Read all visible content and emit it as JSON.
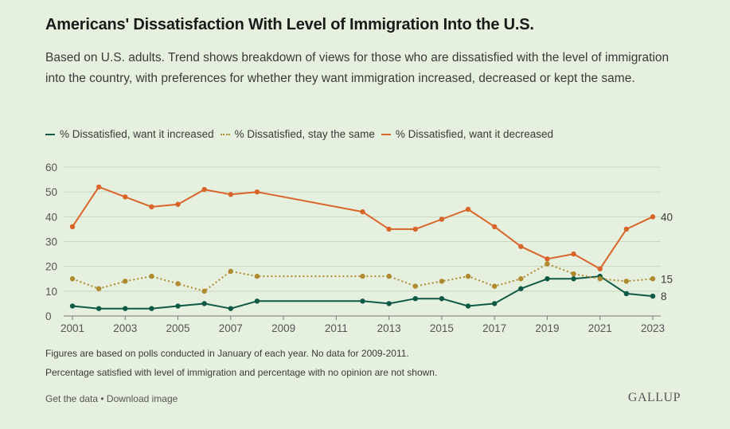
{
  "title": "Americans' Dissatisfaction With Level of Immigration Into the U.S.",
  "subtitle": "Based on U.S. adults. Trend shows breakdown of views for those who are dissatisfied with the level of immigration into the country, with preferences for whether they want immigration increased, decreased or kept the same.",
  "notes": [
    "Figures are based on polls conducted in January of each year. No data for 2009-2011.",
    "Percentage satisfied with level of immigration and percentage with no opinion are not shown."
  ],
  "footer": {
    "get_data": "Get the data",
    "separator": " • ",
    "download": "Download image"
  },
  "brand": "GALLUP",
  "colors": {
    "increased": "#0f5a46",
    "same": "#b08a2e",
    "decreased": "#d9652b",
    "grid": "#c9d6c0",
    "axis": "#7a7a7a"
  },
  "chart_data": {
    "type": "line",
    "xlabel": "",
    "ylabel": "",
    "ylim": [
      0,
      60
    ],
    "yticks": [
      0,
      10,
      20,
      30,
      40,
      50,
      60
    ],
    "xlim": [
      2001,
      2023
    ],
    "xticks": [
      2001,
      2003,
      2005,
      2007,
      2009,
      2011,
      2013,
      2015,
      2017,
      2019,
      2021,
      2023
    ],
    "grid": "horizontal",
    "legend_position": "top-left",
    "x": [
      2001,
      2002,
      2003,
      2004,
      2005,
      2006,
      2007,
      2008,
      2012,
      2013,
      2014,
      2015,
      2016,
      2017,
      2018,
      2019,
      2020,
      2021,
      2022,
      2023
    ],
    "series": [
      {
        "key": "increased",
        "name": "% Dissatisfied, want it increased",
        "style": "solid",
        "values": [
          4,
          3,
          3,
          3,
          4,
          5,
          3,
          6,
          6,
          5,
          7,
          7,
          4,
          5,
          11,
          15,
          15,
          16,
          9,
          8
        ],
        "end_label": "8"
      },
      {
        "key": "same",
        "name": "% Dissatisfied, stay the same",
        "style": "dotted",
        "values": [
          15,
          11,
          14,
          16,
          13,
          10,
          18,
          16,
          16,
          16,
          12,
          14,
          16,
          12,
          15,
          21,
          17,
          15,
          14,
          15
        ],
        "end_label": "15"
      },
      {
        "key": "decreased",
        "name": "% Dissatisfied, want it decreased",
        "style": "solid",
        "values": [
          36,
          52,
          48,
          44,
          45,
          51,
          49,
          50,
          42,
          35,
          35,
          39,
          43,
          36,
          28,
          23,
          25,
          19,
          35,
          40
        ],
        "end_label": "40"
      }
    ]
  }
}
